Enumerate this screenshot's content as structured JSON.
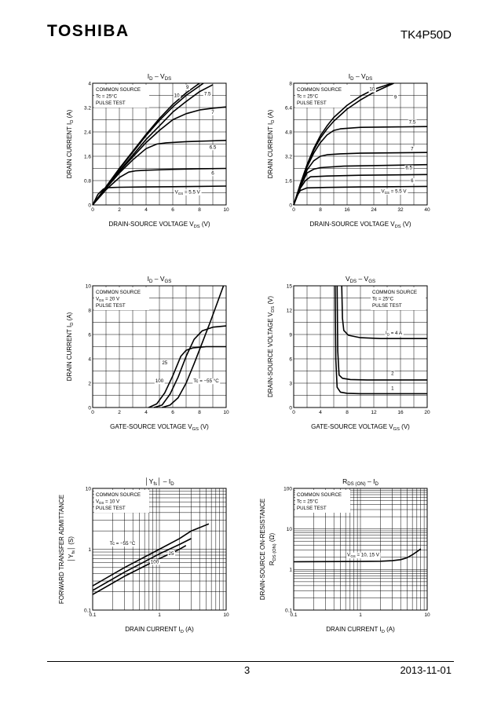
{
  "header": {
    "brand": "TOSHIBA",
    "part_number": "TK4P50D"
  },
  "footer": {
    "page": "3",
    "date": "2013-11-01"
  },
  "chart_data": [
    {
      "id": "c1",
      "type": "line",
      "title": "I D – VDS",
      "title_parts": [
        "I",
        "D",
        " – V",
        "DS"
      ],
      "ylabel": "DRAIN CURRENT   ID   (A)",
      "xlabel": "DRAIN-SOURCE VOLTAGE   VDS   (V)",
      "xscale": "linear",
      "yscale": "linear",
      "xlim": [
        0,
        10
      ],
      "ylim": [
        0,
        4
      ],
      "xticks": [
        0,
        2,
        4,
        6,
        8,
        10
      ],
      "xtick_labels": [
        "0",
        "2",
        "4",
        "6",
        "8",
        "10"
      ],
      "yticks": [
        0,
        0.8,
        1.6,
        2.4,
        3.2,
        4
      ],
      "ytick_labels": [
        "0",
        "0.8",
        "1.6",
        "2.4",
        "3.2",
        "4"
      ],
      "grid_x": [
        0,
        1,
        2,
        3,
        4,
        5,
        6,
        7,
        8,
        9,
        10
      ],
      "grid_y": [
        0,
        0.4,
        0.8,
        1.2,
        1.6,
        2.0,
        2.4,
        2.8,
        3.2,
        3.6,
        4.0
      ],
      "legend": {
        "lines": [
          "COMMON SOURCE",
          "Tc = 25°C",
          "PULSE TEST"
        ],
        "position": "top-left"
      },
      "series": [
        {
          "name": "5.5",
          "x": [
            0,
            0.4,
            0.8,
            1.2,
            2,
            4,
            6,
            8,
            10
          ],
          "y": [
            0,
            0.35,
            0.52,
            0.57,
            0.58,
            0.59,
            0.6,
            0.61,
            0.62
          ]
        },
        {
          "name": "6",
          "x": [
            0,
            1,
            2,
            2.7,
            3.2,
            4,
            6,
            8,
            10
          ],
          "y": [
            0,
            0.5,
            0.9,
            1.08,
            1.12,
            1.14,
            1.17,
            1.19,
            1.2
          ]
        },
        {
          "name": "6.5",
          "x": [
            0,
            1,
            2,
            3,
            4,
            4.8,
            5.5,
            7,
            10
          ],
          "y": [
            0,
            0.55,
            1.05,
            1.48,
            1.85,
            2.0,
            2.04,
            2.08,
            2.12
          ]
        },
        {
          "name": "7",
          "x": [
            0,
            2,
            4,
            5,
            6,
            7,
            8,
            9,
            10
          ],
          "y": [
            0,
            1.1,
            2.05,
            2.45,
            2.8,
            3.0,
            3.12,
            3.18,
            3.22
          ]
        },
        {
          "name": "7.5",
          "x": [
            0,
            2,
            4,
            5,
            6,
            7,
            8,
            9
          ],
          "y": [
            0,
            1.12,
            2.15,
            2.6,
            3.05,
            3.4,
            3.72,
            3.95
          ]
        },
        {
          "name": "9",
          "x": [
            0,
            2,
            4,
            5,
            6,
            7,
            8.3
          ],
          "y": [
            0,
            1.18,
            2.28,
            2.78,
            3.22,
            3.6,
            4.0
          ]
        },
        {
          "name": "10",
          "x": [
            0,
            2,
            4,
            5,
            6,
            7,
            8
          ],
          "y": [
            0,
            1.2,
            2.32,
            2.84,
            3.3,
            3.68,
            4.0
          ]
        }
      ],
      "annotations": [
        {
          "text": "9",
          "x": 7.1,
          "y": 3.82
        },
        {
          "text": "10",
          "x": 6.3,
          "y": 3.55
        },
        {
          "text": "7.5",
          "x": 8.6,
          "y": 3.6
        },
        {
          "text": "7",
          "x": 9.0,
          "y": 3.0
        },
        {
          "text": "6.5",
          "x": 9.0,
          "y": 1.85
        },
        {
          "text": "6",
          "x": 9.0,
          "y": 1.0
        },
        {
          "text": "VGS = 5.5 V",
          "x": 7.1,
          "y": 0.38
        }
      ]
    },
    {
      "id": "c2",
      "type": "line",
      "title_parts": [
        "I",
        "D",
        " – V",
        "DS"
      ],
      "ylabel": "DRAIN CURRENT   ID   (A)",
      "xlabel": "DRAIN-SOURCE VOLTAGE   VDS   (V)",
      "xscale": "linear",
      "yscale": "linear",
      "xlim": [
        0,
        40
      ],
      "ylim": [
        0,
        8
      ],
      "xticks": [
        0,
        8,
        16,
        24,
        32,
        40
      ],
      "xtick_labels": [
        "0",
        "8",
        "16",
        "24",
        "32",
        "40"
      ],
      "yticks": [
        0,
        1.6,
        3.2,
        4.8,
        6.4,
        8
      ],
      "ytick_labels": [
        "0",
        "1.6",
        "3.2",
        "4.8",
        "6.4",
        "8"
      ],
      "grid_x": [
        0,
        4,
        8,
        12,
        16,
        20,
        24,
        28,
        32,
        36,
        40
      ],
      "grid_y": [
        0,
        0.8,
        1.6,
        2.4,
        3.2,
        4.0,
        4.8,
        5.6,
        6.4,
        7.2,
        8.0
      ],
      "legend": {
        "lines": [
          "COMMON SOURCE",
          "Tc = 25°C",
          "PULSE TEST"
        ],
        "position": "top-left"
      },
      "series": [
        {
          "name": "5.5",
          "x": [
            0,
            1,
            2,
            4,
            10,
            20,
            30,
            40
          ],
          "y": [
            0,
            0.6,
            0.95,
            1.12,
            1.15,
            1.18,
            1.2,
            1.22
          ]
        },
        {
          "name": "6",
          "x": [
            0,
            2,
            3.5,
            5,
            10,
            20,
            40
          ],
          "y": [
            0,
            1.1,
            1.6,
            1.85,
            1.9,
            1.95,
            2.0
          ]
        },
        {
          "name": "6.5",
          "x": [
            0,
            2,
            4,
            6,
            8,
            15,
            40
          ],
          "y": [
            0,
            1.2,
            2.1,
            2.35,
            2.45,
            2.55,
            2.65
          ]
        },
        {
          "name": "7",
          "x": [
            0,
            2,
            4,
            6,
            8,
            10,
            14,
            20,
            40
          ],
          "y": [
            0,
            1.25,
            2.3,
            2.9,
            3.2,
            3.3,
            3.36,
            3.4,
            3.45
          ]
        },
        {
          "name": "7.5",
          "x": [
            0,
            2,
            4,
            6,
            8,
            10,
            12,
            14,
            20,
            40
          ],
          "y": [
            0,
            1.3,
            2.5,
            3.4,
            4.1,
            4.6,
            4.9,
            5.0,
            5.1,
            5.15
          ]
        },
        {
          "name": "9",
          "x": [
            0,
            2,
            4,
            6,
            8,
            10,
            12,
            16,
            20,
            24,
            30
          ],
          "y": [
            0,
            1.35,
            2.6,
            3.6,
            4.4,
            5.0,
            5.5,
            6.3,
            6.9,
            7.4,
            8.0
          ]
        },
        {
          "name": "10",
          "x": [
            0,
            2,
            4,
            6,
            8,
            10,
            12,
            16,
            20,
            24,
            29.5
          ],
          "y": [
            0,
            1.38,
            2.65,
            3.7,
            4.55,
            5.2,
            5.75,
            6.55,
            7.15,
            7.6,
            8.0
          ]
        }
      ],
      "annotations": [
        {
          "text": "10",
          "x": 23.5,
          "y": 7.5
        },
        {
          "text": "9",
          "x": 30.5,
          "y": 7.0
        },
        {
          "text": "7.5",
          "x": 35.5,
          "y": 5.35
        },
        {
          "text": "7",
          "x": 35.5,
          "y": 3.6
        },
        {
          "text": "6.5",
          "x": 34.5,
          "y": 2.35
        },
        {
          "text": "6",
          "x": 35.5,
          "y": 1.5
        },
        {
          "text": "VGS = 5.5 V",
          "x": 30.0,
          "y": 0.8
        }
      ]
    },
    {
      "id": "c3",
      "type": "line",
      "title_parts": [
        "I",
        "D",
        " – V",
        "GS"
      ],
      "ylabel": "DRAIN CURRENT   ID   (A)",
      "xlabel": "GATE-SOURCE VOLTAGE   VGS   (V)",
      "xscale": "linear",
      "yscale": "linear",
      "xlim": [
        0,
        10
      ],
      "ylim": [
        0,
        10
      ],
      "xticks": [
        0,
        2,
        4,
        6,
        8,
        10
      ],
      "xtick_labels": [
        "0",
        "2",
        "4",
        "6",
        "8",
        "10"
      ],
      "yticks": [
        0,
        2,
        4,
        6,
        8,
        10
      ],
      "ytick_labels": [
        "0",
        "2",
        "4",
        "6",
        "8",
        "10"
      ],
      "grid_x": [
        0,
        1,
        2,
        3,
        4,
        5,
        6,
        7,
        8,
        9,
        10
      ],
      "grid_y": [
        0,
        1,
        2,
        3,
        4,
        5,
        6,
        7,
        8,
        9,
        10
      ],
      "legend": {
        "lines": [
          "COMMON SOURCE",
          "VDS = 20 V",
          "PULSE TEST"
        ],
        "position": "top-left"
      },
      "series": [
        {
          "name": "100",
          "x": [
            4.2,
            4.8,
            5.4,
            6.0,
            6.6,
            7.0,
            7.5,
            8.5,
            10
          ],
          "y": [
            0,
            0.3,
            1.2,
            2.6,
            4.2,
            4.7,
            4.9,
            5.0,
            5.0
          ]
        },
        {
          "name": "25",
          "x": [
            4.6,
            5.2,
            5.8,
            6.4,
            7.0,
            7.6,
            8.2,
            9.0,
            10
          ],
          "y": [
            0,
            0.2,
            1.1,
            2.5,
            4.2,
            5.6,
            6.3,
            6.6,
            6.7
          ]
        },
        {
          "name": "-55",
          "x": [
            5.2,
            5.8,
            6.4,
            7.0,
            7.6,
            8.2,
            8.8,
            9.4,
            9.8
          ],
          "y": [
            0,
            0.2,
            0.8,
            2.0,
            3.6,
            5.3,
            7.0,
            8.8,
            10
          ]
        }
      ],
      "annotations": [
        {
          "text": "25",
          "x": 5.4,
          "y": 3.55
        },
        {
          "text": "100",
          "x": 5.0,
          "y": 2.05
        },
        {
          "text": "Tc = −55 °C",
          "x": 8.5,
          "y": 2.05
        }
      ]
    },
    {
      "id": "c4",
      "type": "line",
      "title_parts": [
        "V",
        "DS",
        " – V",
        "GS"
      ],
      "ylabel": "DRAIN-SOURCE VOLTAGE   VDS   (V)",
      "xlabel": "GATE-SOURCE VOLTAGE   VGS   (V)",
      "xscale": "linear",
      "yscale": "linear",
      "xlim": [
        0,
        20
      ],
      "ylim": [
        0,
        15
      ],
      "xticks": [
        0,
        4,
        8,
        12,
        16,
        20
      ],
      "xtick_labels": [
        "0",
        "4",
        "8",
        "12",
        "16",
        "20"
      ],
      "yticks": [
        0,
        3,
        6,
        9,
        12,
        15
      ],
      "ytick_labels": [
        "0",
        "3",
        "6",
        "9",
        "12",
        "15"
      ],
      "grid_x": [
        0,
        2,
        4,
        6,
        8,
        10,
        12,
        14,
        16,
        18,
        20
      ],
      "grid_y": [
        0,
        1.5,
        3,
        4.5,
        6,
        7.5,
        9,
        10.5,
        12,
        13.5,
        15
      ],
      "legend": {
        "lines": [
          "COMMON SOURCE",
          "Tc = 25°C",
          "PULSE TEST"
        ],
        "position": "top-right"
      },
      "series": [
        {
          "name": "1",
          "x": [
            6.2,
            6.3,
            6.5,
            7.0,
            8,
            10,
            14,
            20
          ],
          "y": [
            15,
            6,
            2.5,
            1.9,
            1.75,
            1.7,
            1.7,
            1.7
          ]
        },
        {
          "name": "2",
          "x": [
            6.5,
            6.6,
            6.8,
            7.3,
            8.5,
            11,
            15,
            20
          ],
          "y": [
            15,
            7,
            4.0,
            3.6,
            3.45,
            3.4,
            3.4,
            3.4
          ]
        },
        {
          "name": "4",
          "x": [
            7.2,
            7.3,
            7.5,
            8.2,
            10,
            13,
            17,
            20
          ],
          "y": [
            15,
            11,
            9.5,
            8.9,
            8.6,
            8.5,
            8.5,
            8.5
          ]
        }
      ],
      "annotations": [
        {
          "text": "ID = 4 A",
          "x": 15.0,
          "y": 9.0
        },
        {
          "text": "2",
          "x": 14.8,
          "y": 4.0
        },
        {
          "text": "1",
          "x": 14.8,
          "y": 2.2
        }
      ]
    },
    {
      "id": "c5",
      "type": "line",
      "title_parts": [
        "│Y",
        "fs",
        "│ – I",
        "D"
      ],
      "ylabel": "FORWARD TRANSFER ADMITTANCE",
      "ylabel2": "│Yfs│   (S)",
      "xlabel": "DRAIN CURRENT   ID   (A)",
      "xscale": "log",
      "yscale": "log",
      "xlim": [
        0.1,
        10
      ],
      "ylim": [
        0.1,
        10
      ],
      "xticks": [
        0.1,
        1,
        10
      ],
      "xtick_labels": [
        "0.1",
        "1",
        "10"
      ],
      "yticks": [
        0.1,
        1,
        10
      ],
      "ytick_labels": [
        "0.1",
        "1",
        "10"
      ],
      "legend": {
        "lines": [
          "COMMON SOURCE",
          "VDS = 10 V",
          "PULSE TEST"
        ],
        "position": "top-left"
      },
      "series": [
        {
          "name": "-55",
          "x": [
            0.1,
            0.3,
            1,
            2,
            3,
            5.5
          ],
          "y": [
            0.25,
            0.5,
            1.0,
            1.5,
            2.0,
            2.6
          ]
        },
        {
          "name": "25",
          "x": [
            0.1,
            0.3,
            1,
            2,
            3
          ],
          "y": [
            0.21,
            0.42,
            0.84,
            1.2,
            1.5
          ]
        },
        {
          "name": "100",
          "x": [
            0.1,
            0.3,
            1,
            2,
            2.5
          ],
          "y": [
            0.18,
            0.36,
            0.7,
            1.0,
            1.15
          ]
        }
      ],
      "annotations": [
        {
          "text": "Tc = −55 °C",
          "x": 0.28,
          "y": 1.17
        },
        {
          "text": "25",
          "x": 1.5,
          "y": 0.8
        },
        {
          "text": "100",
          "x": 0.85,
          "y": 0.59
        }
      ]
    },
    {
      "id": "c6",
      "type": "line",
      "title_parts": [
        "R",
        "DS (ON)",
        " – I",
        "D"
      ],
      "ylabel": "DRAIN-SOURCE ON-RESISTANCE",
      "ylabel2": "RDS (ON)   (Ω)",
      "xlabel": "DRAIN CURRENT   ID   (A)",
      "xscale": "log",
      "yscale": "log",
      "xlim": [
        0.1,
        10
      ],
      "ylim": [
        0.1,
        100
      ],
      "xticks": [
        0.1,
        1,
        10
      ],
      "xtick_labels": [
        "0.1",
        "1",
        "10"
      ],
      "yticks": [
        0.1,
        1,
        10,
        100
      ],
      "ytick_labels": [
        "0.1",
        "1",
        "10",
        "100"
      ],
      "legend": {
        "lines": [
          "COMMON SOURCE",
          "Tc = 25°C",
          "PULSE TEST"
        ],
        "position": "top-left"
      },
      "series": [
        {
          "name": "VGS = 10, 15 V",
          "x": [
            0.1,
            0.5,
            1,
            2,
            3,
            4,
            5,
            6,
            8
          ],
          "y": [
            1.55,
            1.57,
            1.58,
            1.6,
            1.65,
            1.75,
            1.95,
            2.3,
            3.2
          ]
        }
      ],
      "annotations": [
        {
          "text": "VGS = 10, 15 V",
          "x": 1.1,
          "y": 2.1
        }
      ]
    }
  ]
}
